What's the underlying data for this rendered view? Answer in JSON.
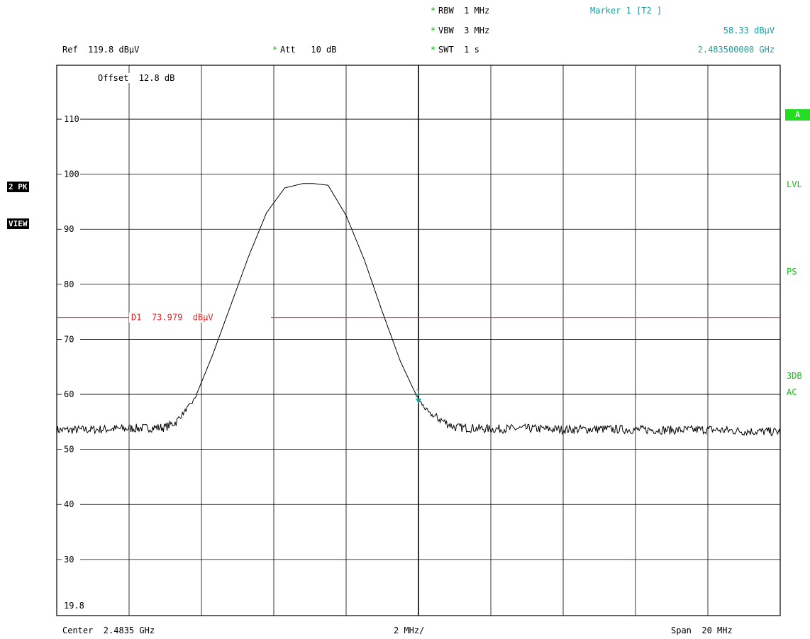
{
  "header": {
    "rbw_star": "*",
    "rbw": "RBW  1 MHz",
    "vbw_star": "*",
    "vbw": "VBW  3 MHz",
    "swt_star": "*",
    "swt": "SWT  1 s",
    "ref": "Ref  119.8 dBµV",
    "att_star": "*",
    "att": "Att   10 dB",
    "marker_title": "Marker 1 [T2 ]",
    "marker_level": "58.33 dBµV",
    "marker_freq": "2.483500000 GHz"
  },
  "offset": "Offset  12.8 dB",
  "left_badges": {
    "trace": "2 PK",
    "mode": "VIEW"
  },
  "right_annotations": {
    "a": "A",
    "lvl": "LVL",
    "ps": "PS",
    "db3": "3DB",
    "ac": "AC"
  },
  "footer": {
    "center": "Center  2.4835 GHz",
    "div": "2 MHz/",
    "span": "Span  20 MHz"
  },
  "colors": {
    "grid": "#000000",
    "trace": "#000000",
    "display_line": "#ee2222",
    "marker": "#1a9e9e",
    "annotation": "#10c010"
  },
  "chart_data": {
    "type": "line",
    "title": "",
    "xlabel": "",
    "ylabel": "",
    "x_unit": "GHz",
    "xlim": [
      2.4735,
      2.4935
    ],
    "ylim": [
      19.8,
      119.8
    ],
    "y_unit": "dBµV",
    "grid": true,
    "ytick_labels": [
      "110",
      "100",
      "90",
      "80",
      "70",
      "60",
      "50",
      "40",
      "30"
    ],
    "ytick_values": [
      110,
      100,
      90,
      80,
      70,
      60,
      50,
      40,
      30
    ],
    "bottom_label": "19.8",
    "display_line": {
      "name": "D1",
      "value": 73.979,
      "label": "D1  73.979  dBµV"
    },
    "marker": {
      "label": "1",
      "x": 2.4835,
      "y": 58.33
    },
    "series": [
      {
        "noise_floor": 53.5,
        "x": [
          2.4735,
          2.4745,
          2.4755,
          2.4765,
          2.4768,
          2.4773,
          2.4778,
          2.4783,
          2.4788,
          2.4793,
          2.4798,
          2.4803,
          2.4806,
          2.481,
          2.4815,
          2.482,
          2.4825,
          2.483,
          2.4835,
          2.4838,
          2.4845,
          2.4855,
          2.4865,
          2.4875,
          2.4885,
          2.4895,
          2.4905,
          2.4915,
          2.4925,
          2.4935
        ],
        "y": [
          53.5,
          53.6,
          53.8,
          54.0,
          55.0,
          59.0,
          67.0,
          76.0,
          85.0,
          93.0,
          97.5,
          98.3,
          98.3,
          98.0,
          92.5,
          84.5,
          75.0,
          66.0,
          59.0,
          56.5,
          54.0,
          53.7,
          53.8,
          53.6,
          53.7,
          53.6,
          53.5,
          53.6,
          53.3,
          53.2
        ]
      }
    ]
  }
}
